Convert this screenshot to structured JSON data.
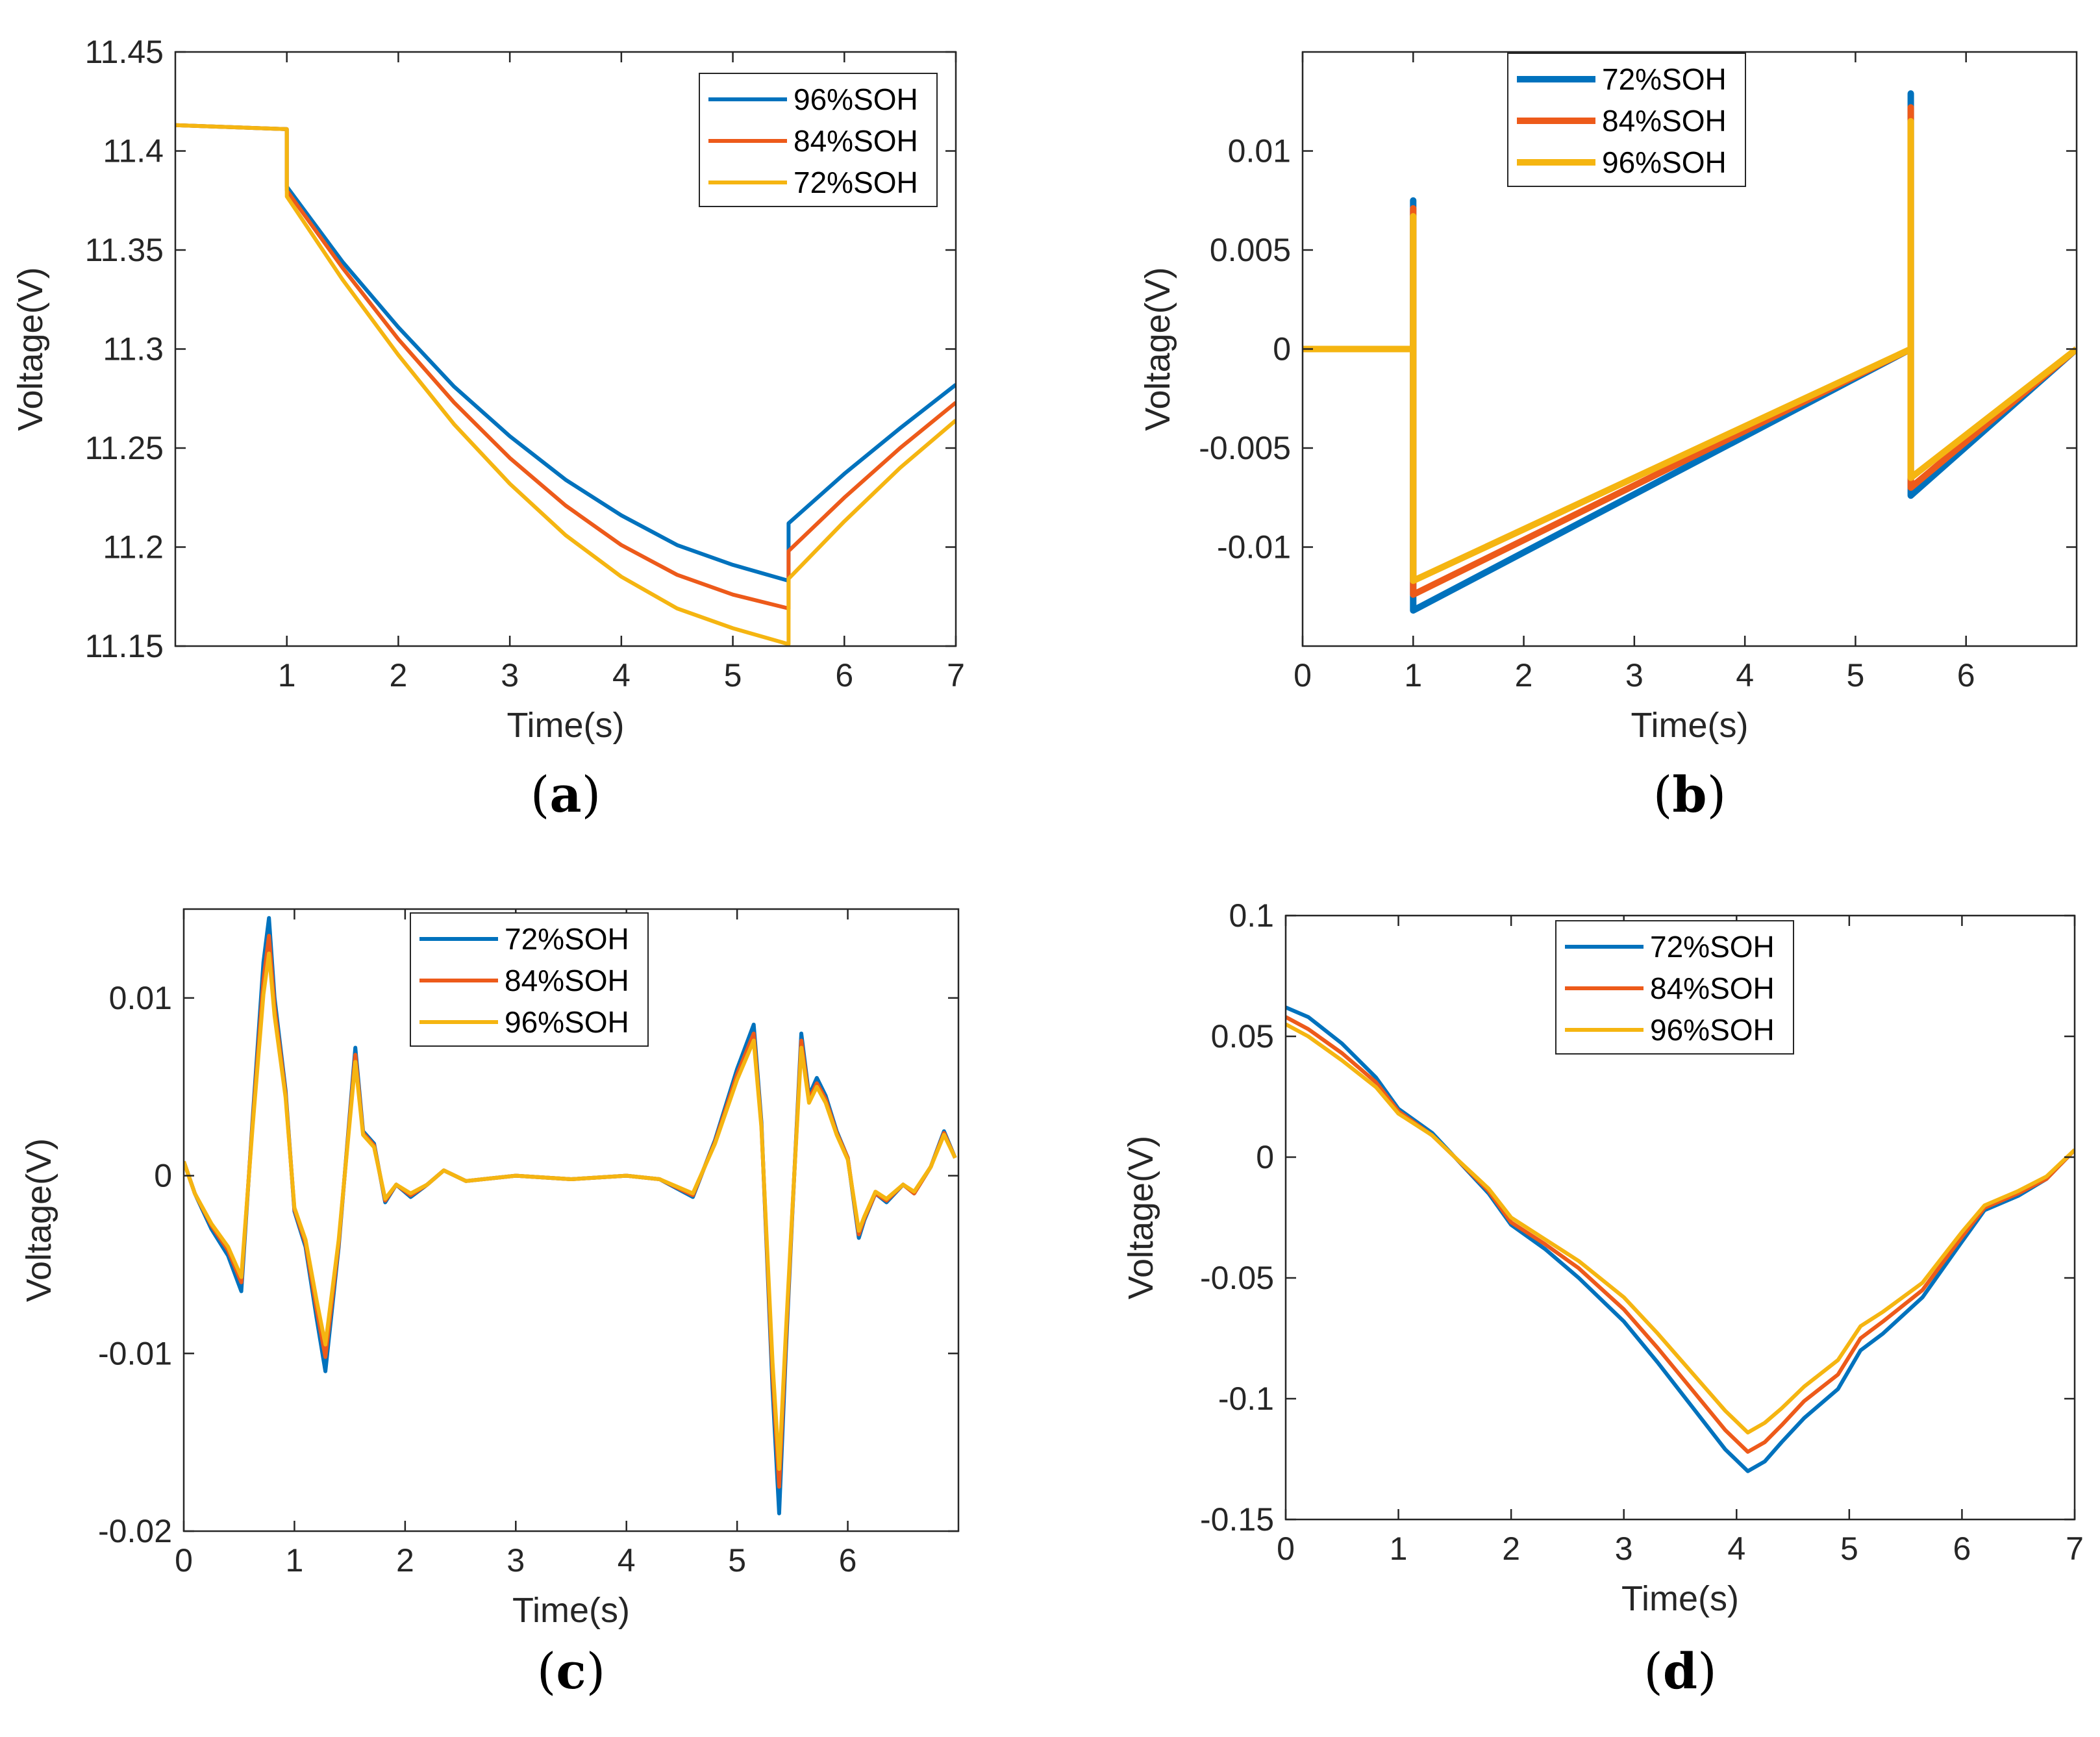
{
  "colors": {
    "blue": "#0072BD",
    "orange": "#ED5A1A",
    "yellow": "#F5B511",
    "axis": "#262626"
  },
  "chart_data": [
    {
      "id": "a",
      "panel_label": "a",
      "type": "line",
      "xlabel": "Time(s)",
      "ylabel": "Voltage(V)",
      "xlim": [
        0,
        7
      ],
      "ylim": [
        11.15,
        11.45
      ],
      "xticks": [
        1,
        2,
        3,
        4,
        5,
        6,
        7
      ],
      "xtick_labels": [
        "1",
        "2",
        "3",
        "4",
        "5",
        "6",
        "7"
      ],
      "yticks": [
        11.15,
        11.2,
        11.25,
        11.3,
        11.35,
        11.4,
        11.45
      ],
      "ytick_labels": [
        "11.15",
        "11.2",
        "11.25",
        "11.3",
        "11.35",
        "11.4",
        "11.45"
      ],
      "legend_position": "top-right",
      "line_width": 6,
      "series": [
        {
          "name": "96%SOH",
          "color": "blue",
          "legend_order": 0,
          "x": [
            0,
            1,
            1,
            1.5,
            2,
            2.5,
            3,
            3.5,
            4,
            4.5,
            5,
            5.5,
            5.5,
            6,
            6.5,
            7
          ],
          "y": [
            11.413,
            11.411,
            11.382,
            11.344,
            11.311,
            11.281,
            11.256,
            11.234,
            11.216,
            11.201,
            11.191,
            11.183,
            11.212,
            11.237,
            11.26,
            11.282
          ]
        },
        {
          "name": "84%SOH",
          "color": "orange",
          "legend_order": 1,
          "x": [
            0,
            1,
            1,
            1.5,
            2,
            2.5,
            3,
            3.5,
            4,
            4.5,
            5,
            5.5,
            5.5,
            6,
            6.5,
            7
          ],
          "y": [
            11.413,
            11.411,
            11.38,
            11.341,
            11.305,
            11.273,
            11.245,
            11.221,
            11.201,
            11.186,
            11.176,
            11.169,
            11.198,
            11.225,
            11.25,
            11.273
          ]
        },
        {
          "name": "72%SOH",
          "color": "yellow",
          "legend_order": 2,
          "x": [
            0,
            1,
            1,
            1.5,
            2,
            2.5,
            3,
            3.5,
            4,
            4.5,
            5,
            5.5,
            5.5,
            6,
            6.5,
            7
          ],
          "y": [
            11.413,
            11.411,
            11.377,
            11.335,
            11.297,
            11.262,
            11.232,
            11.206,
            11.185,
            11.169,
            11.159,
            11.151,
            11.184,
            11.213,
            11.24,
            11.264
          ]
        }
      ]
    },
    {
      "id": "b",
      "panel_label": "b",
      "type": "line",
      "xlabel": "Time(s)",
      "ylabel": "Voltage(V)",
      "xlim": [
        0,
        7
      ],
      "ylim": [
        -0.015,
        0.015
      ],
      "xticks": [
        0,
        1,
        2,
        3,
        4,
        5,
        6
      ],
      "xtick_labels": [
        "0",
        "1",
        "2",
        "3",
        "4",
        "5",
        "6"
      ],
      "yticks": [
        -0.01,
        -0.005,
        0,
        0.005,
        0.01
      ],
      "ytick_labels": [
        "-0.01",
        "-0.005",
        "0",
        "0.005",
        "0.01"
      ],
      "legend_position": "top-center",
      "line_width": 10,
      "series": [
        {
          "name": "72%SOH",
          "color": "blue",
          "legend_order": 0,
          "x": [
            0,
            1,
            1,
            1,
            5.5,
            5.5,
            5.5,
            7
          ],
          "y": [
            0,
            0,
            0.0075,
            -0.0132,
            0,
            0.0129,
            -0.0074,
            0
          ]
        },
        {
          "name": "84%SOH",
          "color": "orange",
          "legend_order": 1,
          "x": [
            0,
            1,
            1,
            1,
            5.5,
            5.5,
            5.5,
            7
          ],
          "y": [
            0,
            0,
            0.0071,
            -0.0124,
            0,
            0.0122,
            -0.007,
            0
          ]
        },
        {
          "name": "96%SOH",
          "color": "yellow",
          "legend_order": 2,
          "x": [
            0,
            1,
            1,
            1,
            5.5,
            5.5,
            5.5,
            7
          ],
          "y": [
            0,
            0,
            0.0067,
            -0.0117,
            0,
            0.0115,
            -0.0065,
            0
          ]
        }
      ]
    },
    {
      "id": "c",
      "panel_label": "c",
      "type": "line",
      "xlabel": "Time(s)",
      "ylabel": "Voltage(V)",
      "xlim": [
        0,
        7
      ],
      "ylim": [
        -0.02,
        0.015
      ],
      "xticks": [
        0,
        1,
        2,
        3,
        4,
        5,
        6
      ],
      "xtick_labels": [
        "0",
        "1",
        "2",
        "3",
        "4",
        "5",
        "6"
      ],
      "yticks": [
        -0.02,
        -0.01,
        0,
        0.01
      ],
      "ytick_labels": [
        "-0.02",
        "-0.01",
        "0",
        "0.01"
      ],
      "legend_position": "top-center",
      "line_width": 6,
      "series": [
        {
          "name": "72%SOH",
          "color": "blue",
          "legend_order": 0,
          "x": [
            0,
            0.1,
            0.25,
            0.4,
            0.52,
            0.62,
            0.72,
            0.77,
            0.82,
            0.92,
            1.0,
            1.1,
            1.2,
            1.28,
            1.4,
            1.55,
            1.62,
            1.72,
            1.82,
            1.92,
            2.05,
            2.2,
            2.35,
            2.55,
            3.0,
            3.5,
            4.0,
            4.3,
            4.6,
            4.8,
            5.0,
            5.15,
            5.22,
            5.32,
            5.38,
            5.44,
            5.5,
            5.58,
            5.65,
            5.72,
            5.8,
            5.9,
            6.0,
            6.1,
            6.15,
            6.25,
            6.35,
            6.5,
            6.6,
            6.75,
            6.87,
            6.97
          ],
          "y": [
            0.0008,
            -0.001,
            -0.003,
            -0.0045,
            -0.0065,
            0.003,
            0.012,
            0.0145,
            0.01,
            0.0048,
            -0.002,
            -0.004,
            -0.008,
            -0.011,
            -0.004,
            0.0072,
            0.0025,
            0.0018,
            -0.0015,
            -0.0005,
            -0.0012,
            -0.0005,
            0.0003,
            -0.0003,
            0.0,
            -0.0002,
            0.0,
            -0.0002,
            -0.0012,
            0.002,
            0.006,
            0.0085,
            0.003,
            -0.012,
            -0.019,
            -0.01,
            -0.002,
            0.008,
            0.0045,
            0.0055,
            0.0045,
            0.0025,
            0.001,
            -0.0035,
            -0.0025,
            -0.001,
            -0.0015,
            -0.0005,
            -0.001,
            0.0005,
            0.0025,
            0.001
          ]
        },
        {
          "name": "84%SOH",
          "color": "orange",
          "legend_order": 1,
          "x": [
            0,
            0.1,
            0.25,
            0.4,
            0.52,
            0.62,
            0.72,
            0.77,
            0.82,
            0.92,
            1.0,
            1.1,
            1.2,
            1.28,
            1.4,
            1.55,
            1.62,
            1.72,
            1.82,
            1.92,
            2.05,
            2.2,
            2.35,
            2.55,
            3.0,
            3.5,
            4.0,
            4.3,
            4.6,
            4.8,
            5.0,
            5.15,
            5.22,
            5.32,
            5.38,
            5.44,
            5.5,
            5.58,
            5.65,
            5.72,
            5.8,
            5.9,
            6.0,
            6.1,
            6.15,
            6.25,
            6.35,
            6.5,
            6.6,
            6.75,
            6.87,
            6.97
          ],
          "y": [
            0.0008,
            -0.001,
            -0.0028,
            -0.0042,
            -0.006,
            0.0028,
            0.011,
            0.0135,
            0.0095,
            0.0046,
            -0.0019,
            -0.0038,
            -0.0075,
            -0.0102,
            -0.0038,
            0.0068,
            0.0024,
            0.0017,
            -0.0014,
            -0.0005,
            -0.0011,
            -0.0005,
            0.0003,
            -0.0003,
            0.0,
            -0.0002,
            0.0,
            -0.0002,
            -0.0011,
            0.0019,
            0.0057,
            0.008,
            0.0028,
            -0.0112,
            -0.0175,
            -0.0094,
            -0.0019,
            0.0076,
            0.0043,
            0.0052,
            0.0043,
            0.0024,
            0.001,
            -0.0033,
            -0.0024,
            -0.001,
            -0.0014,
            -0.0005,
            -0.001,
            0.0005,
            0.0024,
            0.001
          ]
        },
        {
          "name": "96%SOH",
          "color": "yellow",
          "legend_order": 2,
          "x": [
            0,
            0.1,
            0.25,
            0.4,
            0.52,
            0.62,
            0.72,
            0.77,
            0.82,
            0.92,
            1.0,
            1.1,
            1.2,
            1.28,
            1.4,
            1.55,
            1.62,
            1.72,
            1.82,
            1.92,
            2.05,
            2.2,
            2.35,
            2.55,
            3.0,
            3.5,
            4.0,
            4.3,
            4.6,
            4.8,
            5.0,
            5.15,
            5.22,
            5.32,
            5.38,
            5.44,
            5.5,
            5.58,
            5.65,
            5.72,
            5.8,
            5.9,
            6.0,
            6.1,
            6.15,
            6.25,
            6.35,
            6.5,
            6.6,
            6.75,
            6.87,
            6.97
          ],
          "y": [
            0.0008,
            -0.001,
            -0.0027,
            -0.004,
            -0.0057,
            0.0026,
            0.0102,
            0.0125,
            0.009,
            0.0044,
            -0.0018,
            -0.0036,
            -0.007,
            -0.0095,
            -0.0036,
            0.0064,
            0.0023,
            0.0016,
            -0.0013,
            -0.0005,
            -0.001,
            -0.0005,
            0.0003,
            -0.0003,
            0.0,
            -0.0002,
            0.0,
            -0.0002,
            -0.001,
            0.0018,
            0.0054,
            0.0076,
            0.0027,
            -0.0105,
            -0.0165,
            -0.0089,
            -0.0018,
            0.0072,
            0.0041,
            0.005,
            0.0041,
            0.0023,
            0.0009,
            -0.0031,
            -0.0023,
            -0.0009,
            -0.0013,
            -0.0005,
            -0.0009,
            0.0005,
            0.0023,
            0.001
          ]
        }
      ]
    },
    {
      "id": "d",
      "panel_label": "d",
      "type": "line",
      "xlabel": "Time(s)",
      "ylabel": "Voltage(V)",
      "xlim": [
        0,
        7
      ],
      "ylim": [
        -0.15,
        0.1
      ],
      "xticks": [
        0,
        1,
        2,
        3,
        4,
        5,
        6,
        7
      ],
      "xtick_labels": [
        "0",
        "1",
        "2",
        "3",
        "4",
        "5",
        "6",
        "7"
      ],
      "yticks": [
        -0.15,
        -0.1,
        -0.05,
        0,
        0.05,
        0.1
      ],
      "ytick_labels": [
        "-0.15",
        "-0.1",
        "-0.05",
        "0",
        "0.05",
        "0.1"
      ],
      "legend_position": "top-center",
      "line_width": 6,
      "series": [
        {
          "name": "72%SOH",
          "color": "blue",
          "legend_order": 0,
          "x": [
            0,
            0.2,
            0.5,
            0.8,
            1.0,
            1.3,
            1.5,
            1.8,
            2.0,
            2.3,
            2.6,
            3.0,
            3.3,
            3.6,
            3.9,
            4.1,
            4.25,
            4.4,
            4.6,
            4.9,
            5.1,
            5.3,
            5.65,
            6.0,
            6.2,
            6.5,
            6.75,
            7.0
          ],
          "y": [
            0.062,
            0.058,
            0.047,
            0.033,
            0.02,
            0.01,
            0.0,
            -0.015,
            -0.028,
            -0.038,
            -0.05,
            -0.068,
            -0.085,
            -0.103,
            -0.121,
            -0.13,
            -0.126,
            -0.118,
            -0.108,
            -0.096,
            -0.08,
            -0.073,
            -0.058,
            -0.035,
            -0.022,
            -0.016,
            -0.009,
            0.003
          ]
        },
        {
          "name": "84%SOH",
          "color": "orange",
          "legend_order": 1,
          "x": [
            0,
            0.2,
            0.5,
            0.8,
            1.0,
            1.3,
            1.5,
            1.8,
            2.0,
            2.3,
            2.6,
            3.0,
            3.3,
            3.6,
            3.9,
            4.1,
            4.25,
            4.4,
            4.6,
            4.9,
            5.1,
            5.3,
            5.65,
            6.0,
            6.2,
            6.5,
            6.75,
            7.0
          ],
          "y": [
            0.058,
            0.053,
            0.043,
            0.031,
            0.019,
            0.009,
            0.0,
            -0.014,
            -0.027,
            -0.036,
            -0.046,
            -0.063,
            -0.079,
            -0.096,
            -0.113,
            -0.122,
            -0.118,
            -0.111,
            -0.101,
            -0.09,
            -0.075,
            -0.068,
            -0.055,
            -0.033,
            -0.021,
            -0.015,
            -0.009,
            0.003
          ]
        },
        {
          "name": "96%SOH",
          "color": "yellow",
          "legend_order": 2,
          "x": [
            0,
            0.2,
            0.5,
            0.8,
            1.0,
            1.3,
            1.5,
            1.8,
            2.0,
            2.3,
            2.6,
            3.0,
            3.3,
            3.6,
            3.9,
            4.1,
            4.25,
            4.4,
            4.6,
            4.9,
            5.1,
            5.3,
            5.65,
            6.0,
            6.2,
            6.5,
            6.75,
            7.0
          ],
          "y": [
            0.055,
            0.05,
            0.04,
            0.029,
            0.018,
            0.009,
            0.0,
            -0.013,
            -0.025,
            -0.034,
            -0.043,
            -0.058,
            -0.073,
            -0.089,
            -0.105,
            -0.114,
            -0.11,
            -0.104,
            -0.095,
            -0.084,
            -0.07,
            -0.064,
            -0.052,
            -0.031,
            -0.02,
            -0.014,
            -0.008,
            0.003
          ]
        }
      ]
    }
  ]
}
